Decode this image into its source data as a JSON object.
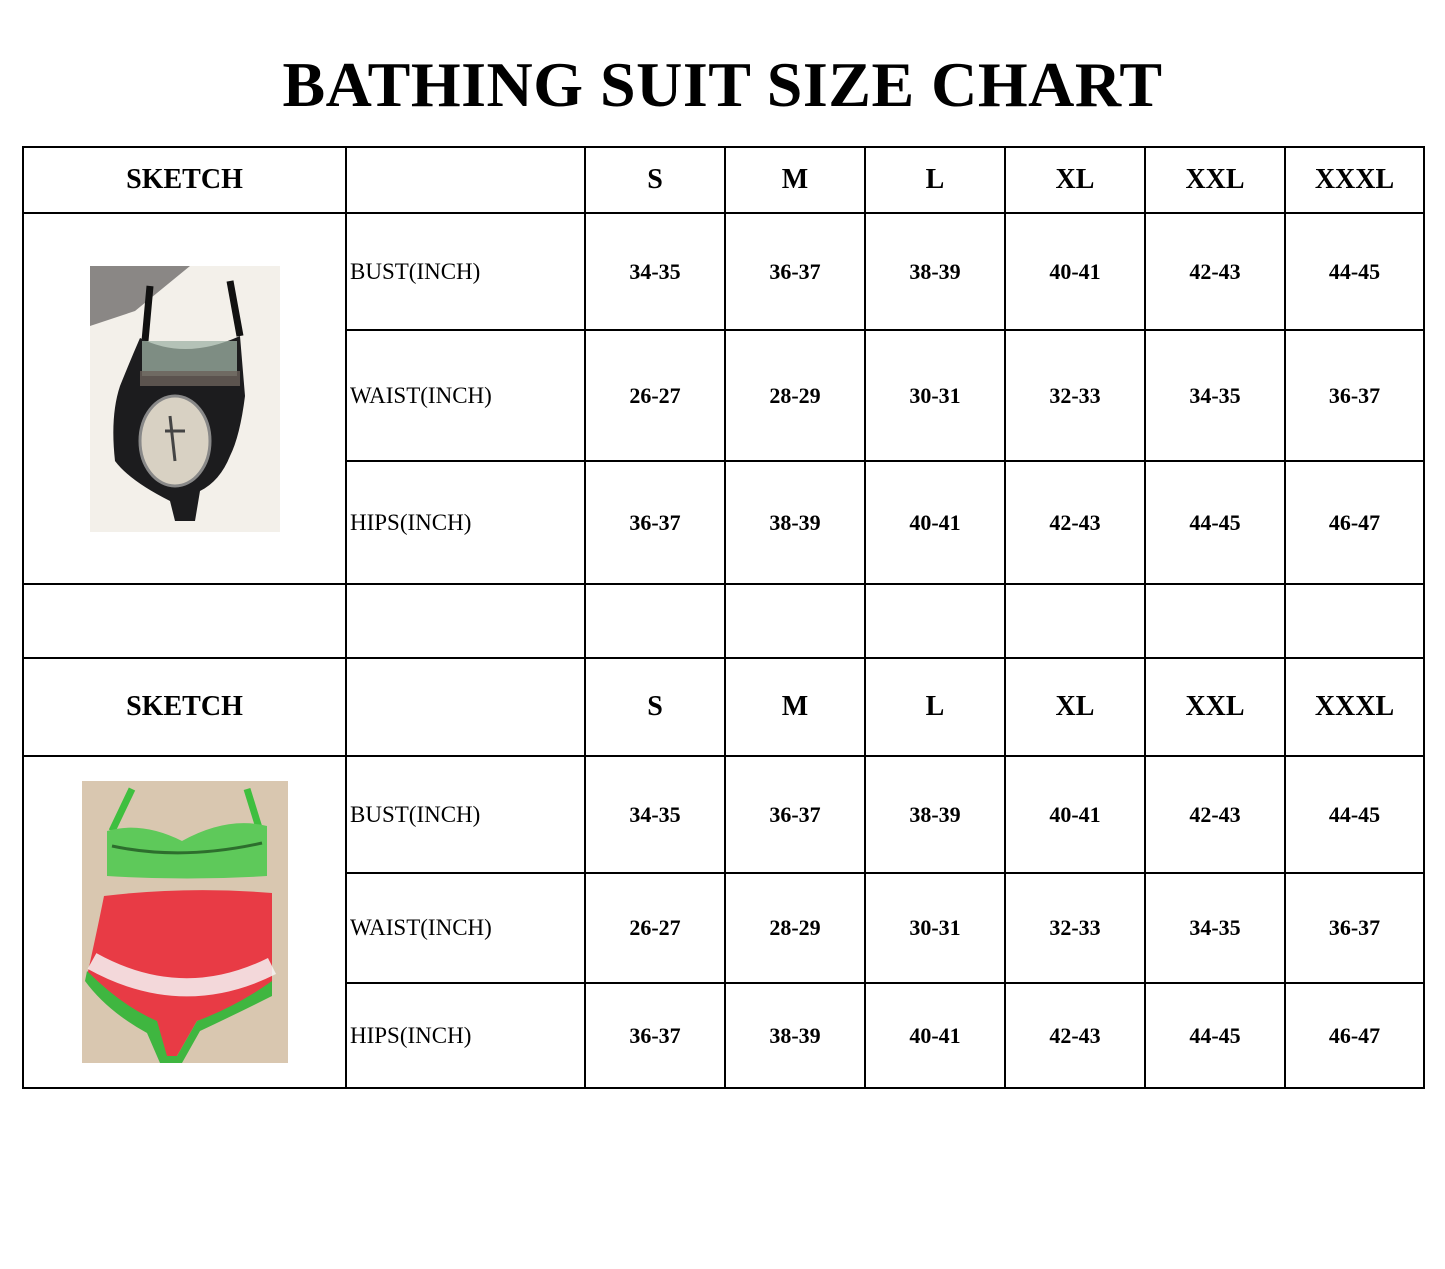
{
  "title": "BATHING SUIT SIZE CHART",
  "sizes": [
    "S",
    "M",
    "L",
    "XL",
    "XXL",
    "XXXL"
  ],
  "sections": [
    {
      "sketch_label": "SKETCH",
      "image": "black-skull-print-one-piece-swimsuit-photo",
      "rows": [
        {
          "label": "BUST(INCH)",
          "values": [
            "34-35",
            "36-37",
            "38-39",
            "40-41",
            "42-43",
            "44-45"
          ]
        },
        {
          "label": "WAIST(INCH)",
          "values": [
            "26-27",
            "28-29",
            "30-31",
            "32-33",
            "34-35",
            "36-37"
          ]
        },
        {
          "label": "HIPS(INCH)",
          "values": [
            "36-37",
            "38-39",
            "40-41",
            "42-43",
            "44-45",
            "46-47"
          ]
        }
      ]
    },
    {
      "sketch_label": "SKETCH",
      "image": "watermelon-print-bikini-photo",
      "rows": [
        {
          "label": "BUST(INCH)",
          "values": [
            "34-35",
            "36-37",
            "38-39",
            "40-41",
            "42-43",
            "44-45"
          ]
        },
        {
          "label": "WAIST(INCH)",
          "values": [
            "26-27",
            "28-29",
            "30-31",
            "32-33",
            "34-35",
            "36-37"
          ]
        },
        {
          "label": "HIPS(INCH)",
          "values": [
            "36-37",
            "38-39",
            "40-41",
            "42-43",
            "44-45",
            "46-47"
          ]
        }
      ]
    }
  ]
}
